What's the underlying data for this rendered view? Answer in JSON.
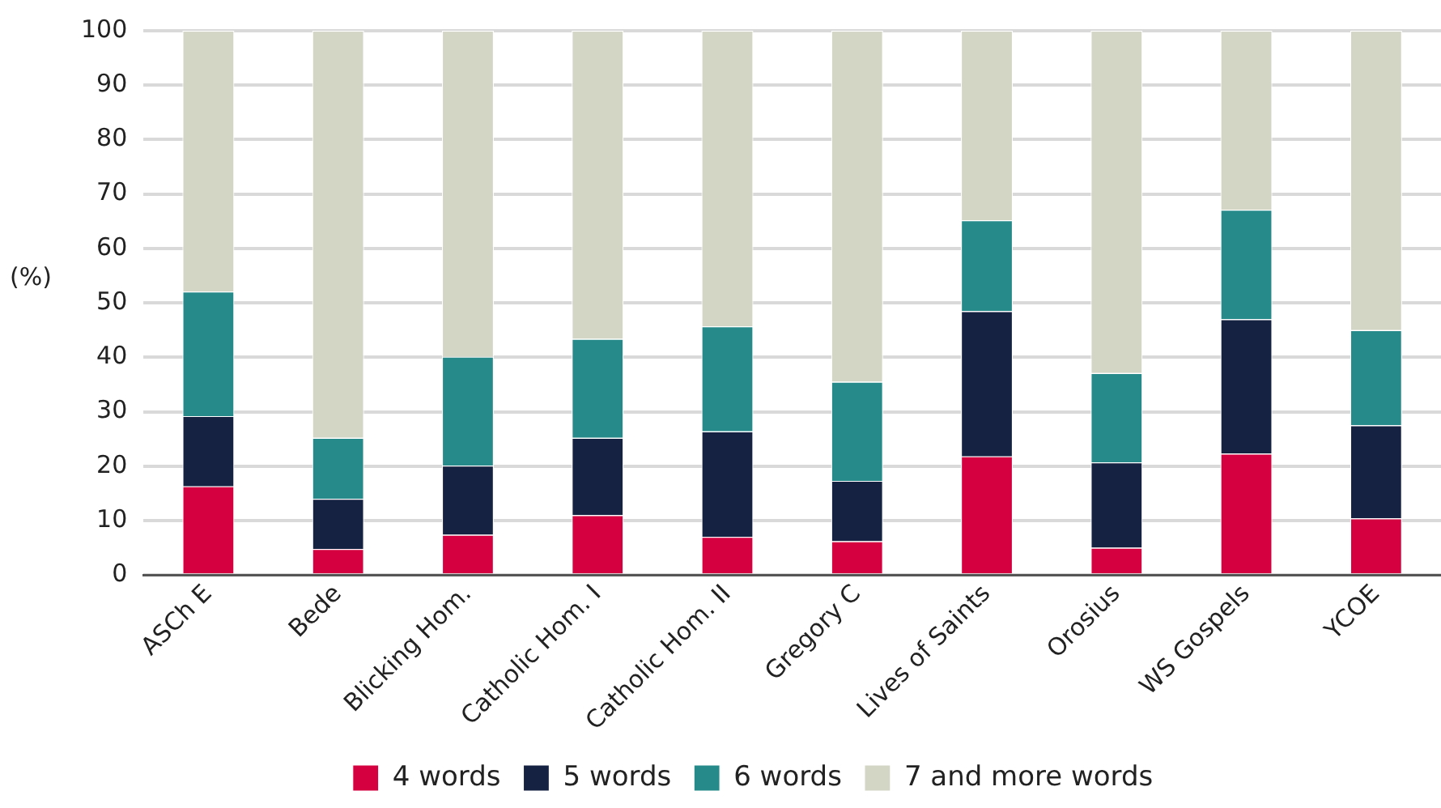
{
  "chart_data": {
    "type": "bar",
    "stacked": true,
    "ylabel": "(%)",
    "categories": [
      "ASCh E",
      "Bede",
      "Blicking Hom.",
      "Catholic Hom. I",
      "Catholic Hom. II",
      "Gregory C",
      "Lives of Saints",
      "Orosius",
      "WS Gospels",
      "YCOE"
    ],
    "series": [
      {
        "name": "4 words",
        "color": "#d5003f",
        "values": [
          16.3,
          4.8,
          7.4,
          11.0,
          7.0,
          6.2,
          21.8,
          5.0,
          22.3,
          10.4
        ]
      },
      {
        "name": "5 words",
        "color": "#162241",
        "values": [
          12.9,
          9.2,
          12.7,
          14.2,
          19.4,
          11.1,
          26.7,
          15.7,
          24.7,
          17.1
        ]
      },
      {
        "name": "6 words",
        "color": "#268a8a",
        "values": [
          22.9,
          11.2,
          20.0,
          18.2,
          19.3,
          18.2,
          16.7,
          16.4,
          20.1,
          17.5
        ]
      },
      {
        "name": "7 and more words",
        "color": "#d3d5c5",
        "values": [
          47.9,
          74.8,
          59.9,
          56.6,
          54.3,
          64.5,
          34.8,
          62.9,
          32.9,
          55.0
        ]
      }
    ],
    "ylim": [
      0,
      100
    ],
    "yticks": [
      0,
      10,
      20,
      30,
      40,
      50,
      60,
      70,
      80,
      90,
      100
    ],
    "grid": "y",
    "legend": "bottom"
  }
}
